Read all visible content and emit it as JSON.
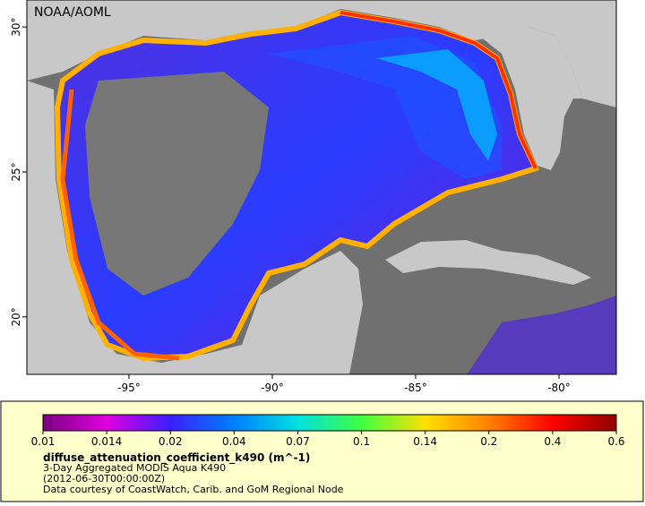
{
  "map": {
    "credit": "NOAA/AOML",
    "xlim": [
      -98.56,
      -78
    ],
    "ylim": [
      18.02,
      30.93
    ],
    "xticks": [
      {
        "value": -95,
        "label": "-95°"
      },
      {
        "value": -90,
        "label": "-90°"
      },
      {
        "value": -85,
        "label": "-85°"
      },
      {
        "value": -80,
        "label": "-80°"
      }
    ],
    "yticks": [
      {
        "value": 30,
        "label": "30°"
      },
      {
        "value": 25,
        "label": "25°"
      },
      {
        "value": 20,
        "label": "20°"
      }
    ]
  },
  "colorbar": {
    "ticks": [
      0.01,
      0.014,
      0.02,
      0.04,
      0.07,
      0.1,
      0.14,
      0.2,
      0.4,
      0.6
    ],
    "colors": [
      "#7a0080",
      "#e000e0",
      "#3a20ff",
      "#0080ff",
      "#00e0e0",
      "#40ff40",
      "#ffe000",
      "#ff8000",
      "#ff0000",
      "#900000"
    ]
  },
  "legend": {
    "title": "diffuse_attenuation_coefficient_k490 (m^-1)",
    "lines": [
      "3-Day Aggregated MODIS Aqua K490",
      "(2012-06-30T00:00:00Z)",
      "Data courtesy of CoastWatch, Carib. and GoM Regional Node"
    ]
  }
}
